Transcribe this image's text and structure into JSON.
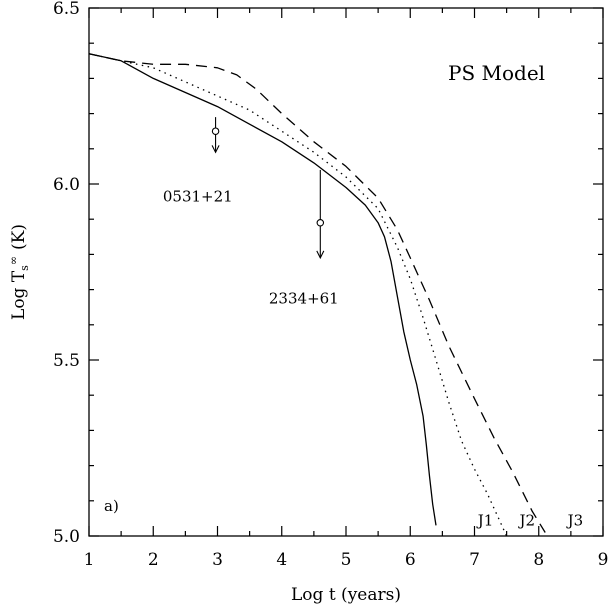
{
  "chart_data": {
    "type": "line",
    "title": "",
    "model_label": "PS Model",
    "panel_label": "a)",
    "xlabel": "Log t (years)",
    "ylabel_main": "Log T",
    "ylabel_sub": "s",
    "ylabel_sup": "∞",
    "ylabel_unit": "(K)",
    "xlim": [
      1,
      9
    ],
    "ylim": [
      5.0,
      6.5
    ],
    "x_ticks": [
      1,
      2,
      3,
      4,
      5,
      6,
      7,
      8,
      9
    ],
    "x_tick_labels": [
      "1",
      "2",
      "3",
      "4",
      "5",
      "6",
      "7",
      "8",
      "9"
    ],
    "y_ticks": [
      5.0,
      5.5,
      6.0,
      6.5
    ],
    "y_tick_labels": [
      "5.0",
      "5.5",
      "6.0",
      "6.5"
    ],
    "grid": false,
    "series": [
      {
        "name": "J1",
        "style": "solid",
        "x": [
          1.0,
          1.5,
          2.0,
          2.5,
          3.0,
          3.5,
          4.0,
          4.5,
          5.0,
          5.3,
          5.5,
          5.6,
          5.7,
          5.8,
          5.9,
          6.0,
          6.1,
          6.2,
          6.25,
          6.3,
          6.35,
          6.4
        ],
        "y": [
          6.37,
          6.35,
          6.3,
          6.26,
          6.22,
          6.17,
          6.12,
          6.06,
          5.99,
          5.94,
          5.89,
          5.85,
          5.78,
          5.68,
          5.58,
          5.5,
          5.43,
          5.34,
          5.26,
          5.17,
          5.09,
          5.03
        ]
      },
      {
        "name": "J2",
        "style": "dotted",
        "x": [
          1.0,
          1.5,
          2.0,
          2.5,
          3.0,
          3.5,
          4.0,
          4.5,
          5.0,
          5.5,
          5.8,
          6.0,
          6.2,
          6.4,
          6.6,
          6.8,
          7.0,
          7.2,
          7.4,
          7.5
        ],
        "y": [
          6.37,
          6.35,
          6.33,
          6.29,
          6.25,
          6.21,
          6.15,
          6.09,
          6.02,
          5.93,
          5.82,
          5.73,
          5.62,
          5.5,
          5.38,
          5.27,
          5.19,
          5.12,
          5.04,
          5.0
        ]
      },
      {
        "name": "J3",
        "style": "dashed",
        "x": [
          1.0,
          1.5,
          2.0,
          2.5,
          3.0,
          3.3,
          3.6,
          4.0,
          4.5,
          5.0,
          5.5,
          5.8,
          6.0,
          6.3,
          6.6,
          7.0,
          7.3,
          7.6,
          7.9,
          8.1
        ],
        "y": [
          6.37,
          6.35,
          6.34,
          6.34,
          6.33,
          6.31,
          6.27,
          6.2,
          6.12,
          6.05,
          5.96,
          5.87,
          5.79,
          5.67,
          5.54,
          5.39,
          5.28,
          5.18,
          5.07,
          5.01
        ]
      }
    ],
    "series_labels": [
      {
        "text": "J1",
        "x": 7.05,
        "y": 5.03
      },
      {
        "text": "J2",
        "x": 7.7,
        "y": 5.03
      },
      {
        "text": "J3",
        "x": 8.45,
        "y": 5.03
      }
    ],
    "observations": [
      {
        "label": "0531+21",
        "x": 2.97,
        "y": 6.15,
        "upper_limit_to": 6.09,
        "error_top": 6.19,
        "label_x": 2.15,
        "label_y": 5.95
      },
      {
        "label": "2334+61",
        "x": 4.6,
        "y": 5.89,
        "upper_limit_to": 5.79,
        "error_top": 6.04,
        "label_x": 3.8,
        "label_y": 5.66
      }
    ]
  }
}
